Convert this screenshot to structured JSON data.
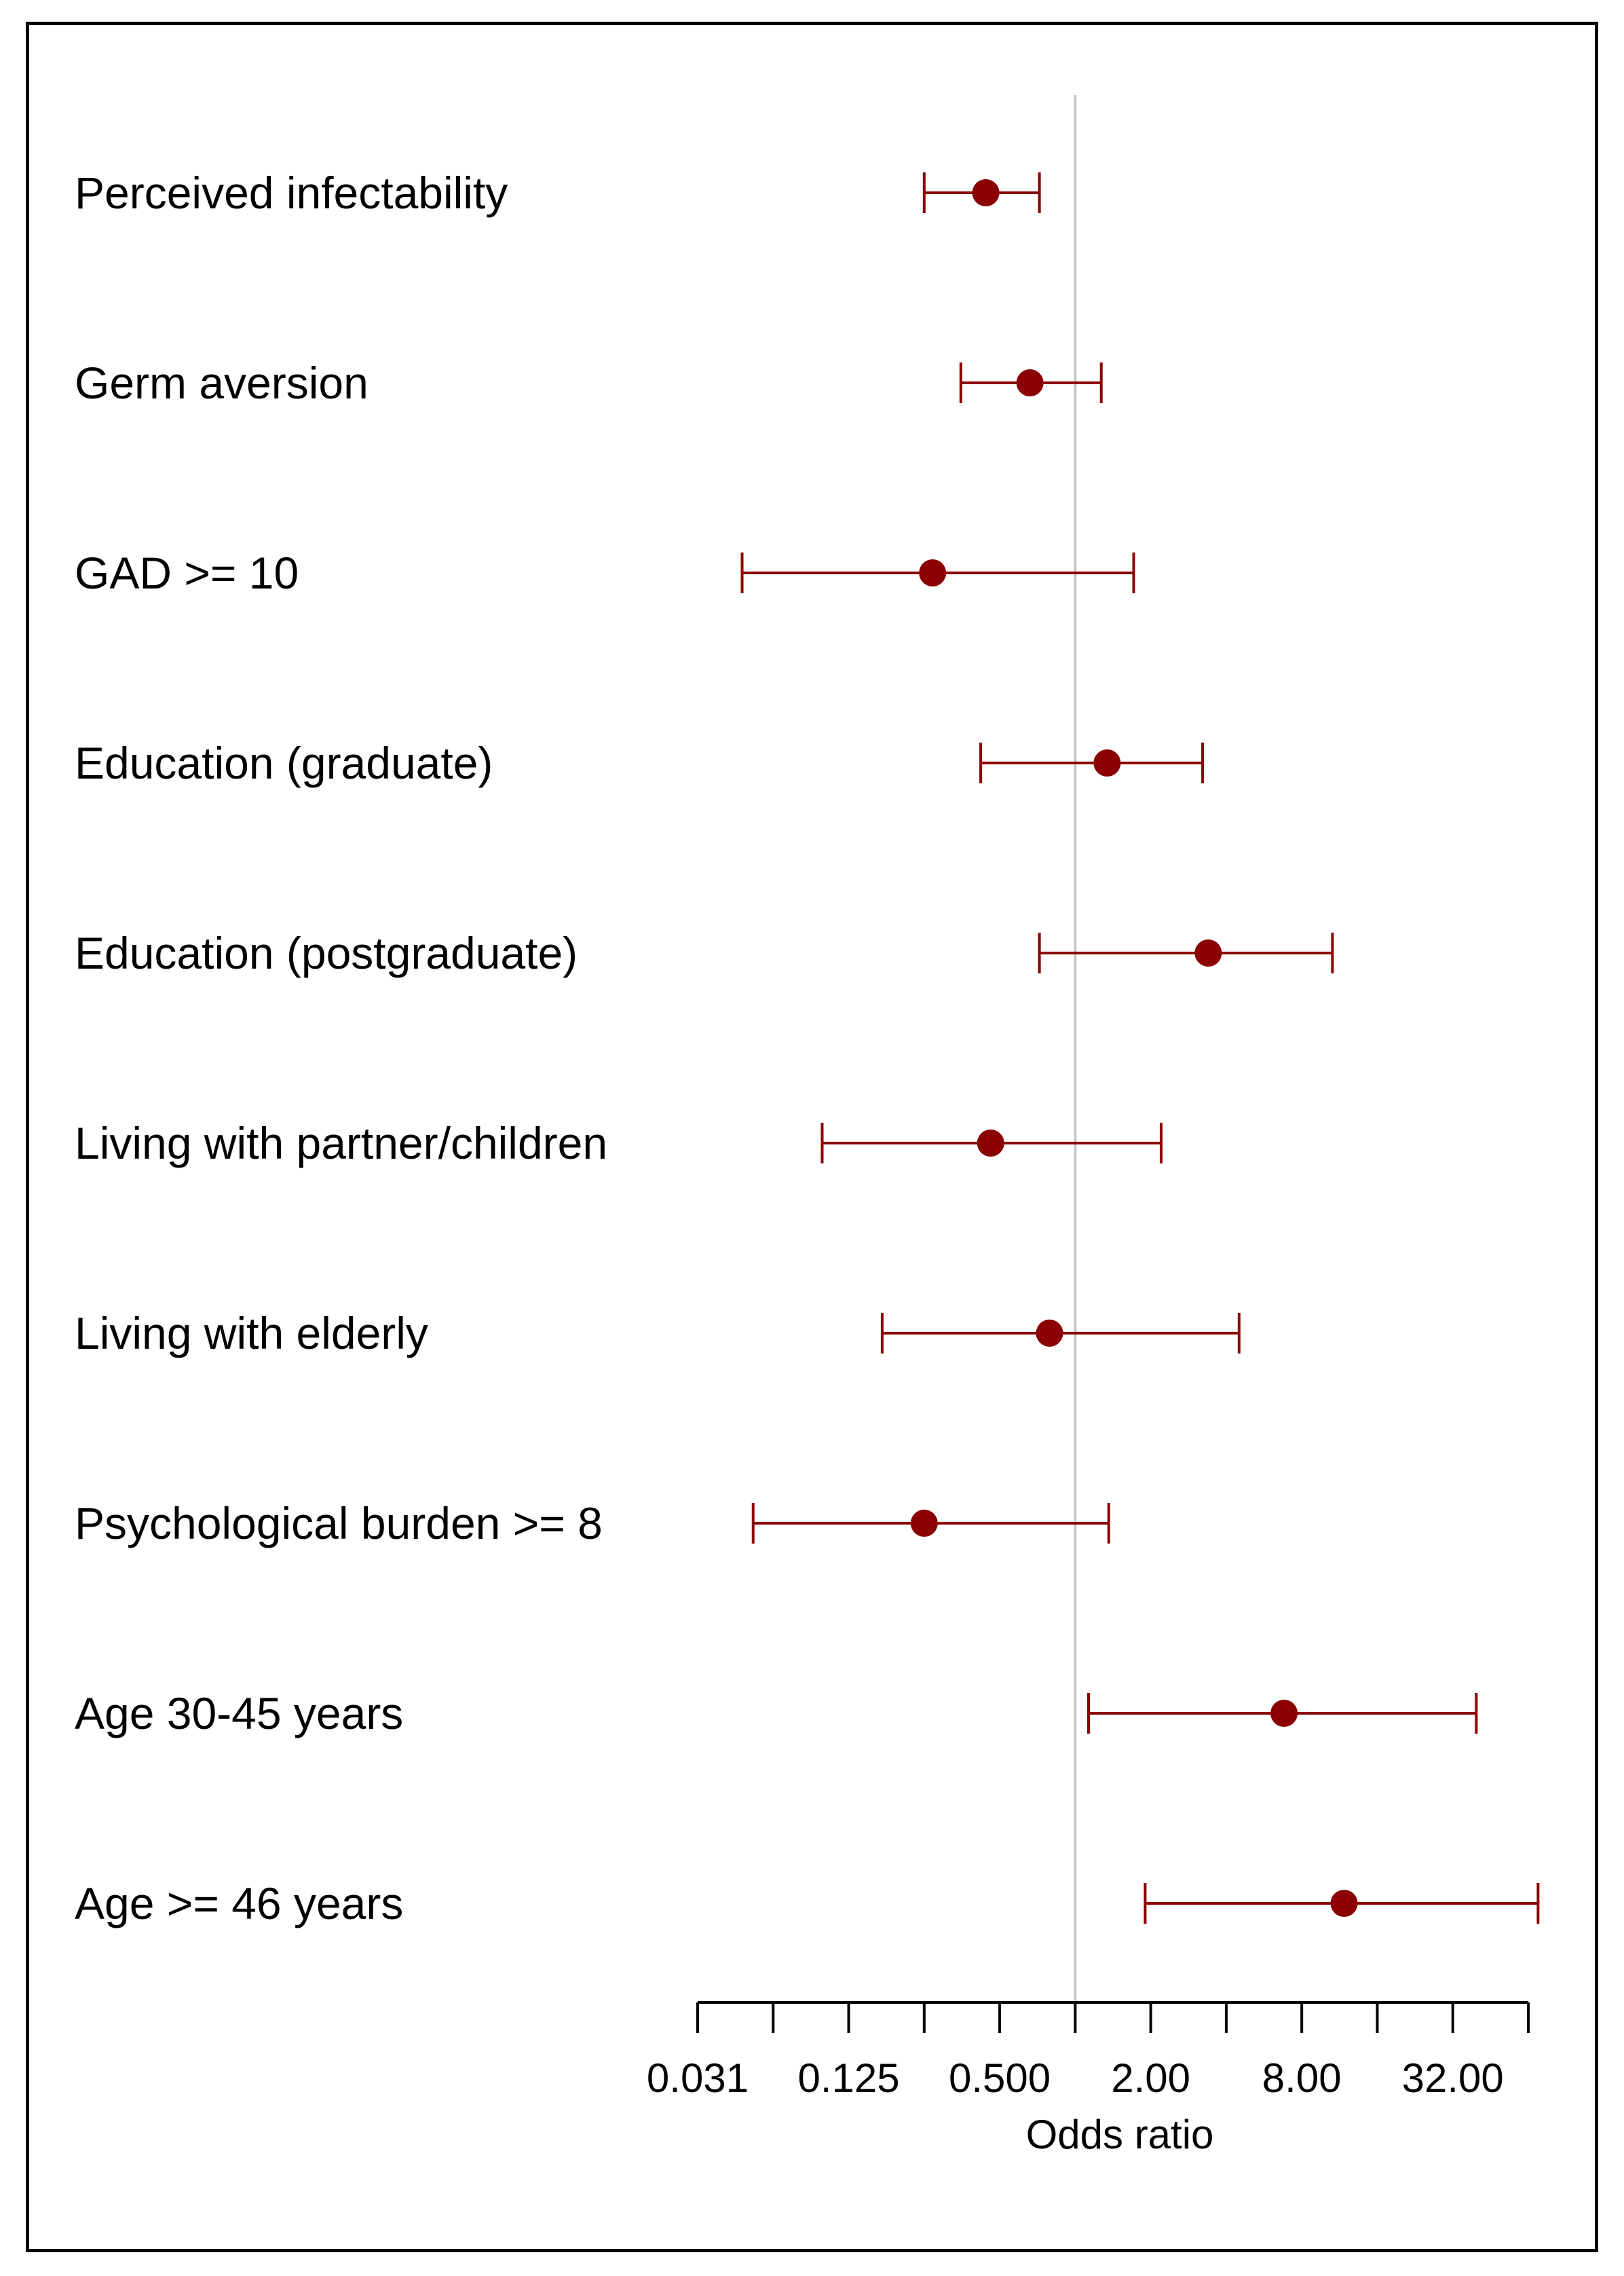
{
  "chart_data": {
    "type": "forest",
    "xlabel": "Odds ratio",
    "x_scale": "log2",
    "xlim": [
      0.031,
      64
    ],
    "x_ticks": [
      0.03125,
      0.0625,
      0.125,
      0.25,
      0.5,
      1,
      2,
      4,
      8,
      16,
      32,
      64
    ],
    "x_tick_labels": [
      {
        "value": 0.03125,
        "label": "0.031"
      },
      {
        "value": 0.125,
        "label": "0.125"
      },
      {
        "value": 0.5,
        "label": "0.500"
      },
      {
        "value": 2,
        "label": "2.00"
      },
      {
        "value": 8,
        "label": "8.00"
      },
      {
        "value": 32,
        "label": "32.00"
      }
    ],
    "reference_line": 1,
    "colors": {
      "point": "#8b0000",
      "reference": "#c8c8c8",
      "axis": "#000000"
    },
    "rows": [
      {
        "label": "Perceived infectability",
        "or": 0.44,
        "lo": 0.25,
        "hi": 0.72
      },
      {
        "label": "Germ aversion",
        "or": 0.66,
        "lo": 0.35,
        "hi": 1.27
      },
      {
        "label": "GAD >= 10",
        "or": 0.27,
        "lo": 0.047,
        "hi": 1.71
      },
      {
        "label": "Education (graduate)",
        "or": 1.34,
        "lo": 0.42,
        "hi": 3.22
      },
      {
        "label": "Education (postgraduate)",
        "or": 3.39,
        "lo": 0.72,
        "hi": 10.6
      },
      {
        "label": "Living with partner/children",
        "or": 0.46,
        "lo": 0.098,
        "hi": 2.2
      },
      {
        "label": "Living with elderly",
        "or": 0.79,
        "lo": 0.17,
        "hi": 4.5
      },
      {
        "label": "Psychological burden  >= 8",
        "or": 0.25,
        "lo": 0.052,
        "hi": 1.36
      },
      {
        "label": "Age 30-45 years",
        "or": 6.8,
        "lo": 1.13,
        "hi": 39.7
      },
      {
        "label": "Age >= 46 years",
        "or": 11.8,
        "lo": 1.9,
        "hi": 70
      }
    ]
  }
}
